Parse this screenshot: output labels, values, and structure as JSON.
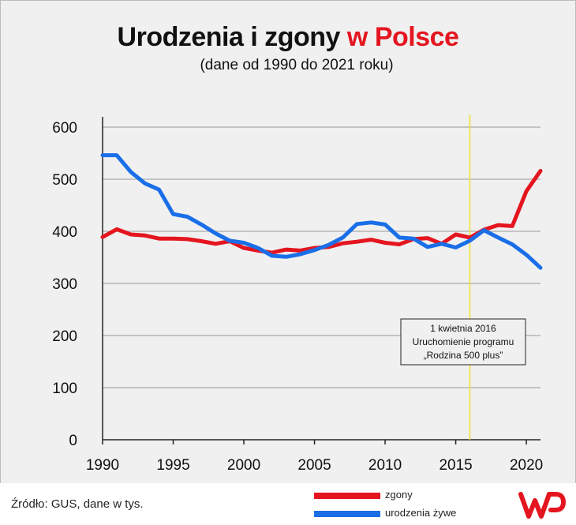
{
  "title": {
    "main": "Urodzenia i zgony",
    "accent": "w Polsce"
  },
  "subtitle": "(dane od 1990 do 2021 roku)",
  "annotation": {
    "line1": "1 kwietnia 2016",
    "line2": "Uruchomienie programu",
    "line3": "„Rodzina 500 plus”",
    "x": 2016
  },
  "source": "Źródło: GUS, dane w tys.",
  "colors": {
    "deaths": "#e4151f",
    "births": "#1a6fe8",
    "marker": "#f2e233",
    "grid": "#c4c4c4"
  },
  "logo_icon": "wp-logo-icon",
  "chart_data": {
    "type": "line",
    "xlim": [
      1990,
      2021
    ],
    "ylim": [
      0,
      600
    ],
    "xticks": [
      1990,
      1995,
      2000,
      2005,
      2010,
      2015,
      2020
    ],
    "yticks": [
      0,
      100,
      200,
      300,
      400,
      500,
      600
    ],
    "grid": true,
    "legend_position": "bottom",
    "x": [
      1990,
      1991,
      1992,
      1993,
      1994,
      1995,
      1996,
      1997,
      1998,
      1999,
      2000,
      2001,
      2002,
      2003,
      2004,
      2005,
      2006,
      2007,
      2008,
      2009,
      2010,
      2011,
      2012,
      2013,
      2014,
      2015,
      2016,
      2017,
      2018,
      2019,
      2020,
      2021
    ],
    "series": [
      {
        "name": "zgony",
        "values": [
          389,
          404,
          394,
          392,
          386,
          386,
          385,
          381,
          376,
          381,
          368,
          363,
          359,
          365,
          363,
          368,
          370,
          377,
          380,
          384,
          378,
          375,
          385,
          387,
          376,
          394,
          388,
          403,
          412,
          410,
          477,
          516
        ]
      },
      {
        "name": "urodzenia żywe",
        "values": [
          546,
          546,
          514,
          492,
          480,
          433,
          428,
          413,
          396,
          382,
          378,
          368,
          353,
          351,
          356,
          364,
          374,
          388,
          414,
          417,
          413,
          388,
          386,
          370,
          376,
          369,
          382,
          402,
          388,
          375,
          355,
          330
        ]
      }
    ]
  }
}
